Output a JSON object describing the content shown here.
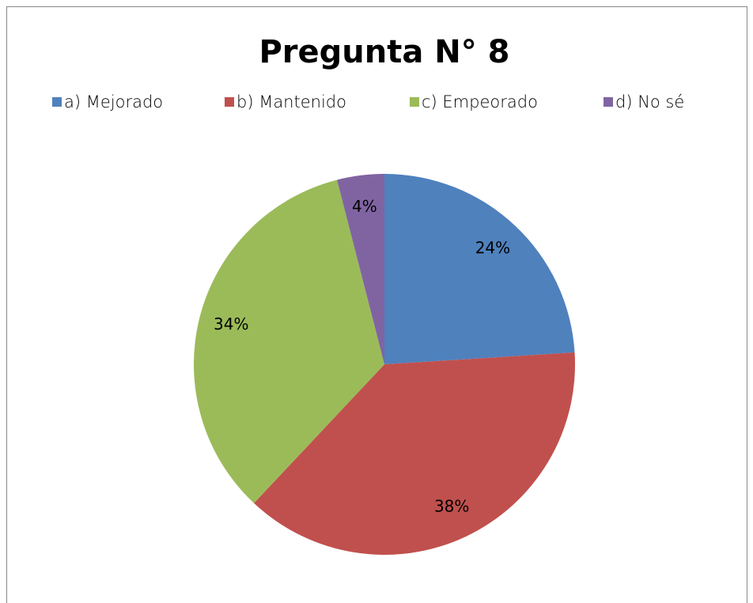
{
  "chart_data": {
    "type": "pie",
    "title": "Pregunta N° 8",
    "categories": [
      "a) Mejorado",
      "b) Mantenido",
      "c) Empeorado",
      "d) No sé"
    ],
    "values": [
      24,
      38,
      34,
      4
    ],
    "value_labels": [
      "24%",
      "38%",
      "34%",
      "4%"
    ],
    "colors": [
      "#4f81bd",
      "#c0504d",
      "#9bbb59",
      "#8064a2"
    ],
    "legend": "top"
  }
}
